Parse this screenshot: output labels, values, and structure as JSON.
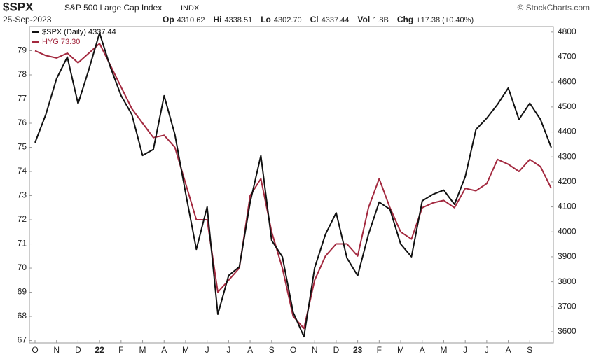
{
  "chart_data": {
    "type": "line",
    "title": "$SPX",
    "subtitle": "S&P 500 Large Cap Index",
    "exchange": "INDX",
    "source": "© StockCharts.com",
    "date": "25-Sep-2023",
    "quote": [
      {
        "label": "Op",
        "value": "4310.62"
      },
      {
        "label": "Hi",
        "value": "4338.51"
      },
      {
        "label": "Lo",
        "value": "4302.70"
      },
      {
        "label": "Cl",
        "value": "4337.44"
      },
      {
        "label": "Vol",
        "value": "1.8B"
      },
      {
        "label": "Chg",
        "value": "+17.38 (+0.40%)"
      }
    ],
    "categories": [
      "O",
      null,
      "N",
      null,
      "D",
      null,
      "22",
      null,
      "F",
      null,
      "M",
      null,
      "A",
      null,
      "M",
      null,
      "J",
      null,
      "J",
      null,
      "A",
      null,
      "S",
      null,
      "O",
      null,
      "N",
      null,
      "D",
      null,
      "23",
      null,
      "F",
      null,
      "M",
      null,
      "A",
      null,
      "M",
      null,
      "J",
      null,
      "J",
      null,
      "A",
      null,
      "S",
      null,
      null
    ],
    "series": [
      {
        "name": "$SPX (Daily) 4337.44",
        "color": "#111111",
        "axis": "y2",
        "values": [
          4357,
          4470,
          4613,
          4700,
          4513,
          4650,
          4796,
          4660,
          4546,
          4470,
          4306,
          4330,
          4545,
          4390,
          4155,
          3930,
          4100,
          3670,
          3825,
          3860,
          4118,
          4305,
          3966,
          3900,
          3678,
          3580,
          3856,
          3990,
          4076,
          3895,
          3824,
          3990,
          4119,
          4090,
          3951,
          3900,
          4124,
          4150,
          4167,
          4110,
          4221,
          4410,
          4455,
          4510,
          4576,
          4450,
          4515,
          4450,
          4337.44
        ]
      },
      {
        "name": "HYG 73.30",
        "color": "#a3293f",
        "values": [
          79,
          78.8,
          78.7,
          78.9,
          78.5,
          78.9,
          79.3,
          78.4,
          77.5,
          76.6,
          76,
          75.4,
          75.5,
          75,
          73.5,
          72,
          72,
          69,
          69.5,
          70,
          73,
          73.7,
          71.5,
          70,
          68,
          67.5,
          69.5,
          70.5,
          71,
          71,
          70.5,
          72.5,
          73.7,
          72.5,
          71.5,
          71.2,
          72.5,
          72.7,
          72.8,
          72.5,
          73.3,
          73.2,
          73.5,
          74.5,
          74.3,
          74,
          74.5,
          74.2,
          73.3
        ]
      }
    ],
    "ylim": [
      66.9,
      80
    ],
    "yticks": [
      67,
      68,
      69,
      70,
      71,
      72,
      73,
      74,
      75,
      76,
      77,
      78,
      79
    ],
    "y2lim": [
      3555,
      4822
    ],
    "y2ticks": [
      3600,
      3700,
      3800,
      3900,
      4000,
      4100,
      4200,
      4300,
      4400,
      4500,
      4600,
      4700,
      4800
    ],
    "grid": false
  }
}
